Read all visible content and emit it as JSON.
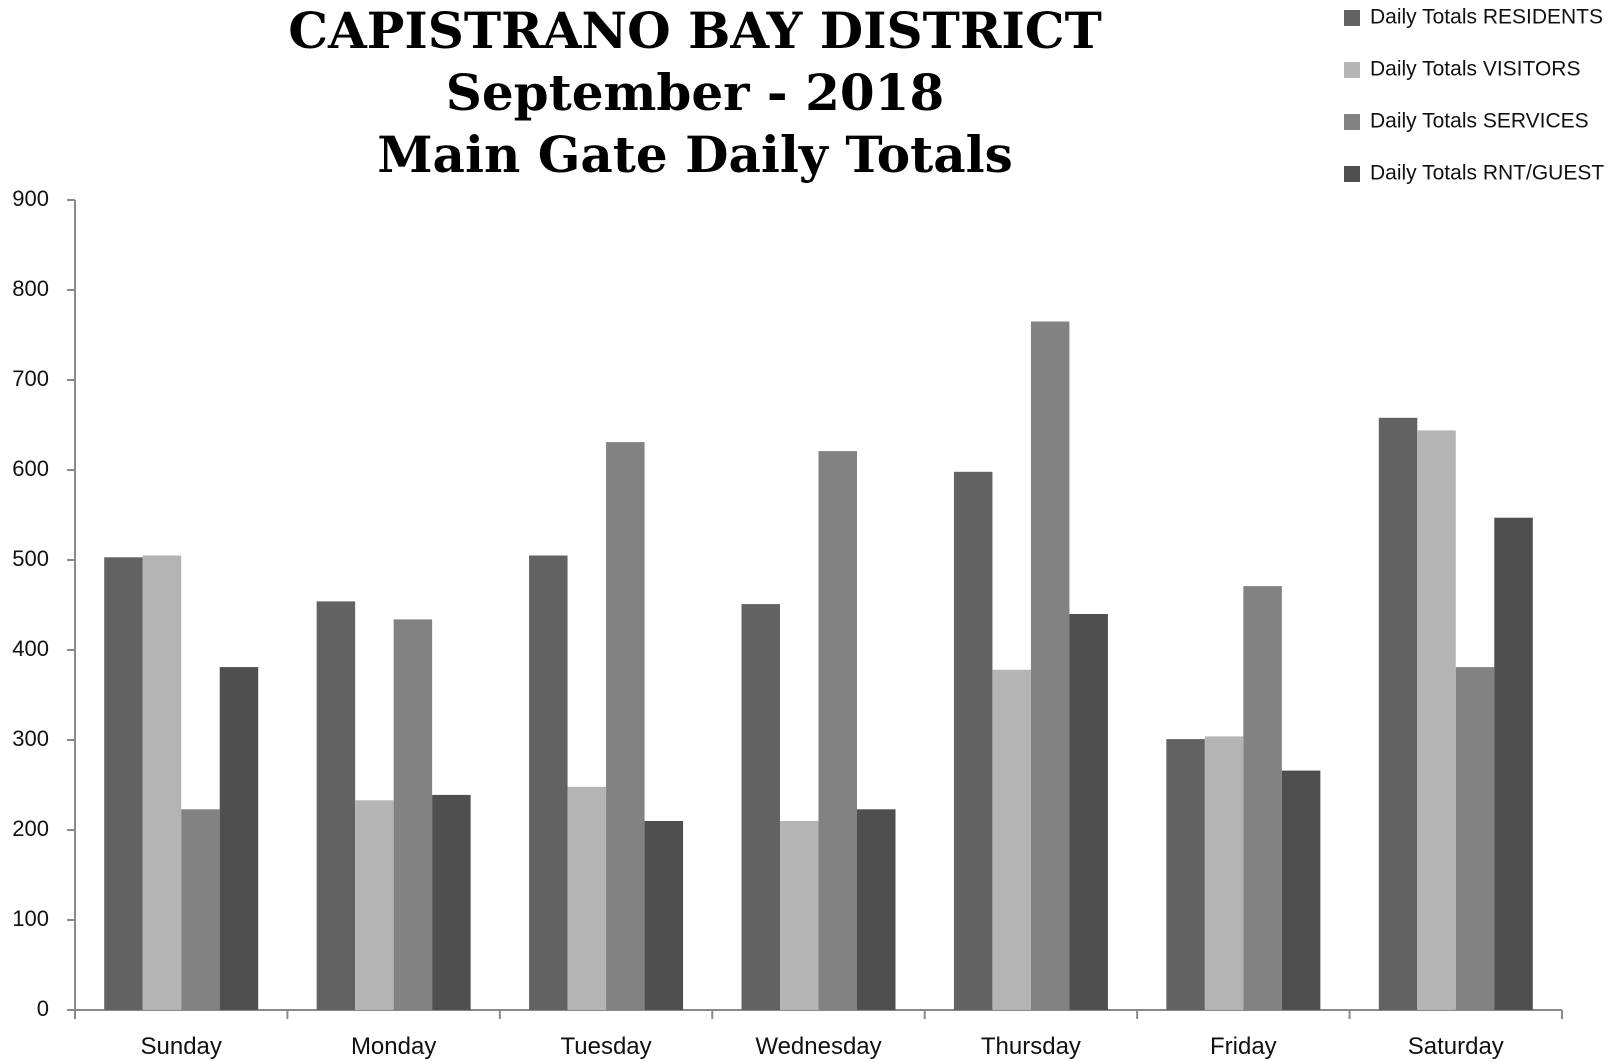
{
  "chart_data": {
    "type": "bar",
    "title_lines": [
      "CAPISTRANO BAY DISTRICT",
      "September - 2018",
      "Main Gate Daily Totals"
    ],
    "categories": [
      "Sunday",
      "Monday",
      "Tuesday",
      "Wednesday",
      "Thursday",
      "Friday",
      "Saturday"
    ],
    "ylim": [
      0,
      900
    ],
    "yticks": [
      0,
      100,
      200,
      300,
      400,
      500,
      600,
      700,
      800,
      900
    ],
    "grid": false,
    "legend_position": "top-right",
    "series": [
      {
        "name": "Daily Totals RESIDENTS",
        "color": "#626262",
        "values": [
          503,
          454,
          505,
          451,
          598,
          301,
          658
        ]
      },
      {
        "name": "Daily Totals VISITORS",
        "color": "#b4b4b4",
        "values": [
          505,
          233,
          248,
          210,
          378,
          304,
          644
        ]
      },
      {
        "name": "Daily Totals SERVICES",
        "color": "#828282",
        "values": [
          223,
          434,
          631,
          621,
          765,
          471,
          381
        ]
      },
      {
        "name": "Daily Totals RNT/GUEST",
        "color": "#4f4f4f",
        "values": [
          381,
          239,
          210,
          223,
          440,
          266,
          547
        ]
      }
    ]
  }
}
